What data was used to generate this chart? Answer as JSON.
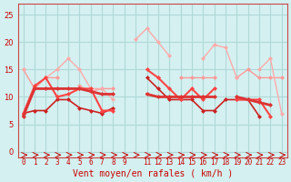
{
  "background_color": "#d4f0f0",
  "grid_color": "#b0d8d8",
  "x_labels": [
    "0",
    "1",
    "2",
    "3",
    "4",
    "5",
    "6",
    "7",
    "8",
    "9",
    "",
    "11",
    "12",
    "13",
    "14",
    "15",
    "16",
    "17",
    "18",
    "19",
    "20",
    "21",
    "22",
    "23"
  ],
  "xlabel": "Vent moyen/en rafales ( km/h )",
  "ylim": [
    -1,
    27
  ],
  "yticks": [
    0,
    5,
    10,
    15,
    20,
    25
  ],
  "lines": [
    {
      "y": [
        15.0,
        11.5,
        13.5,
        13.5,
        null,
        12.0,
        11.0,
        11.5,
        11.5,
        null,
        null,
        null,
        13.5,
        null,
        13.5,
        13.5,
        13.5,
        13.5,
        null,
        13.5,
        15.0,
        13.5,
        13.5,
        13.5
      ],
      "color": "#ff9999",
      "lw": 1.0,
      "marker": "D",
      "ms": 2.0
    },
    {
      "y": [
        15.0,
        null,
        13.5,
        15.0,
        17.0,
        15.0,
        11.5,
        11.5,
        9.5,
        null,
        20.5,
        22.5,
        20.0,
        17.5,
        null,
        null,
        17.0,
        19.5,
        19.0,
        13.5,
        null,
        15.0,
        17.0,
        7.0
      ],
      "color": "#ffaaaa",
      "lw": 1.0,
      "marker": "D",
      "ms": 2.0
    },
    {
      "y": [
        7.0,
        7.5,
        7.5,
        9.5,
        9.5,
        8.0,
        7.5,
        7.0,
        8.0,
        null,
        null,
        13.5,
        11.5,
        9.5,
        9.5,
        9.5,
        7.5,
        7.5,
        9.5,
        9.5,
        9.5,
        6.5,
        null,
        null
      ],
      "color": "#cc2222",
      "lw": 1.2,
      "marker": "D",
      "ms": 2.0
    },
    {
      "y": [
        7.0,
        12.0,
        13.5,
        10.0,
        10.5,
        11.5,
        11.5,
        7.5,
        7.5,
        null,
        null,
        15.0,
        13.5,
        11.5,
        9.5,
        11.5,
        9.5,
        11.5,
        null,
        9.5,
        9.5,
        9.5,
        6.5,
        null
      ],
      "color": "#ff4444",
      "lw": 1.5,
      "marker": "D",
      "ms": 2.0
    },
    {
      "y": [
        6.5,
        null,
        null,
        null,
        null,
        null,
        null,
        null,
        null,
        null,
        null,
        null,
        null,
        null,
        null,
        null,
        null,
        null,
        null,
        null,
        null,
        null,
        null,
        0.5
      ],
      "color": "#cc0000",
      "lw": 1.8,
      "marker": null,
      "ms": 0
    },
    {
      "y": [
        6.5,
        11.5,
        11.5,
        11.5,
        11.5,
        11.5,
        11.0,
        10.5,
        10.5,
        null,
        null,
        10.5,
        10.0,
        10.0,
        10.0,
        10.0,
        10.0,
        10.0,
        null,
        10.0,
        9.5,
        9.0,
        8.5,
        null
      ],
      "color": "#dd3333",
      "lw": 2.0,
      "marker": "D",
      "ms": 2.0
    }
  ]
}
